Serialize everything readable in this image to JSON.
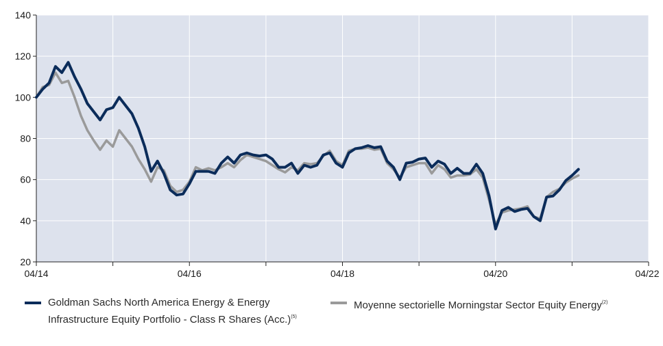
{
  "chart_data": {
    "type": "line",
    "title": "",
    "xlabel": "",
    "ylabel": "",
    "ylim": [
      20,
      140
    ],
    "yticks": [
      20,
      40,
      60,
      80,
      100,
      120,
      140
    ],
    "xlim": [
      "2014-04",
      "2022-04"
    ],
    "xtick_labels": [
      "04/14",
      "04/16",
      "04/18",
      "04/20",
      "04/22"
    ],
    "grid": true,
    "legend_position": "bottom",
    "colors": {
      "plot_bg": "#dde2ed",
      "grid": "#ffffff",
      "series1": "#0b2c5a",
      "series2": "#9a9a9a"
    },
    "series": [
      {
        "name": "Goldman Sachs North America Energy & Energy Infrastructure Equity Portfolio - Class R Shares (Acc.)",
        "note": "(5)",
        "values": [
          100,
          104,
          107,
          115,
          112,
          117,
          110,
          104,
          97,
          93,
          89,
          94,
          95,
          100,
          96,
          92,
          85,
          76,
          64,
          69,
          63,
          55,
          52.5,
          53,
          58,
          64,
          64,
          64,
          63,
          68,
          71,
          68,
          72,
          73,
          72,
          71.5,
          72,
          70,
          66,
          66,
          68,
          63,
          67,
          66,
          67,
          72,
          73,
          68,
          66,
          73,
          75,
          75.5,
          76.5,
          75.5,
          76,
          69,
          66,
          60,
          68,
          68.5,
          70,
          70.5,
          66,
          69,
          67.5,
          63,
          65.5,
          63,
          63,
          67.5,
          63,
          52,
          36,
          45,
          46.5,
          44.5,
          45.5,
          46,
          42,
          40,
          51.5,
          52,
          55,
          59.5,
          62,
          65
        ]
      },
      {
        "name": "Moyenne sectorielle Morningstar Sector Equity Energy",
        "note": "(2)",
        "values": [
          100,
          105,
          106,
          112,
          107,
          108,
          100,
          91,
          84,
          79,
          74.5,
          79,
          76,
          84,
          80,
          76,
          70,
          65,
          59,
          66,
          64.5,
          57,
          54,
          55,
          59,
          66,
          64.5,
          65.5,
          64.5,
          66,
          68,
          66,
          69.5,
          72,
          71,
          70,
          69,
          67,
          65,
          63.5,
          66,
          64.5,
          68,
          67.5,
          68,
          71.5,
          74,
          69,
          67,
          74,
          75,
          75,
          75.5,
          74.5,
          75,
          68,
          65,
          61,
          66,
          67,
          68,
          68,
          63,
          67,
          65,
          61,
          62,
          62,
          62.5,
          65,
          61,
          50,
          38,
          44,
          45,
          45.5,
          46,
          47,
          42,
          41,
          51.5,
          54,
          55.5,
          58.5,
          60.5,
          62
        ]
      }
    ]
  },
  "legend": {
    "series1_label": "Goldman Sachs North America Energy & Energy Infrastructure Equity Portfolio - Class R Shares (Acc.)",
    "series1_note": "(5)",
    "series2_label": "Moyenne sectorielle Morningstar Sector Equity Energy",
    "series2_note": "(2)"
  }
}
